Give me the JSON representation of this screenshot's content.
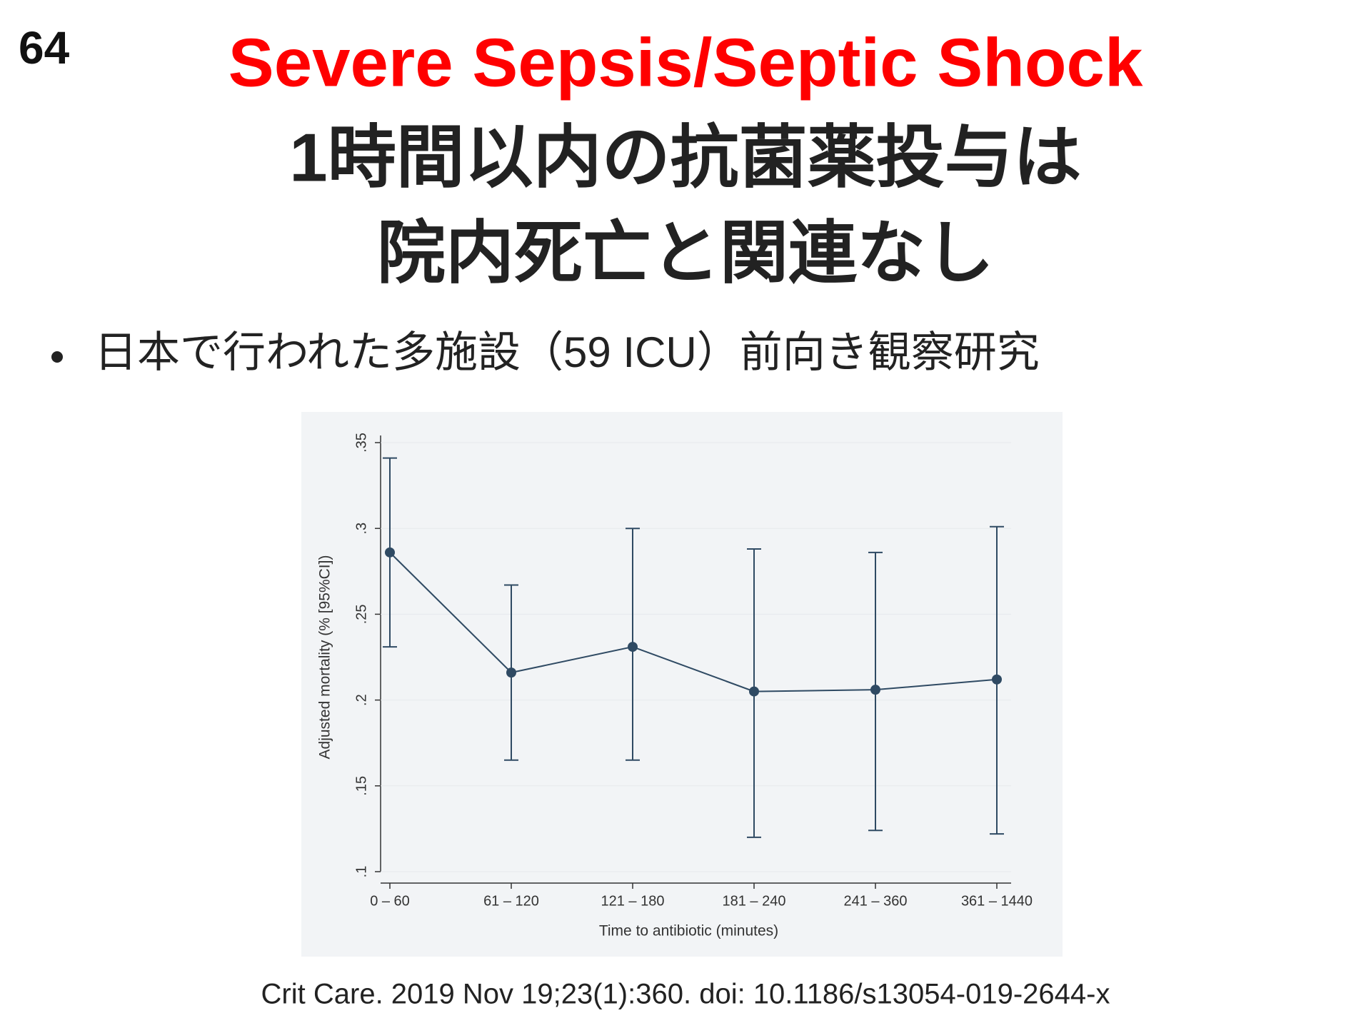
{
  "slide_number": "64",
  "title": "Severe Sepsis/Septic Shock",
  "subtitle_lines": [
    "1時間以内の抗菌薬投与は",
    "院内死亡と関連なし"
  ],
  "bullet": "日本で行われた多施設（59 ICU）前向き観察研究",
  "citation": "Crit Care. 2019 Nov 19;23(1):360.  doi: 10.1186/s13054-019-2644-x",
  "chart_data": {
    "type": "line",
    "x_label": "Time to antibiotic (minutes)",
    "y_label": "Adjusted mortality (% [95%CI])",
    "categories": [
      "0 – 60",
      "61 – 120",
      "121 – 180",
      "181 – 240",
      "241 – 360",
      "361 – 1440"
    ],
    "series": [
      {
        "color": "#2f4a63",
        "values": [
          0.286,
          0.216,
          0.231,
          0.205,
          0.206,
          0.212
        ],
        "lower": [
          0.231,
          0.165,
          0.165,
          0.12,
          0.124,
          0.122
        ],
        "upper": [
          0.341,
          0.267,
          0.3,
          0.288,
          0.286,
          0.301
        ]
      }
    ],
    "ylim": [
      0.1,
      0.35
    ],
    "yticks": [
      {
        "value": 0.1,
        "label": ".1"
      },
      {
        "value": 0.15,
        "label": ".15"
      },
      {
        "value": 0.2,
        "label": ".2"
      },
      {
        "value": 0.25,
        "label": ".25"
      },
      {
        "value": 0.3,
        "label": ".3"
      },
      {
        "value": 0.35,
        "label": ".35"
      }
    ],
    "grid": true
  }
}
